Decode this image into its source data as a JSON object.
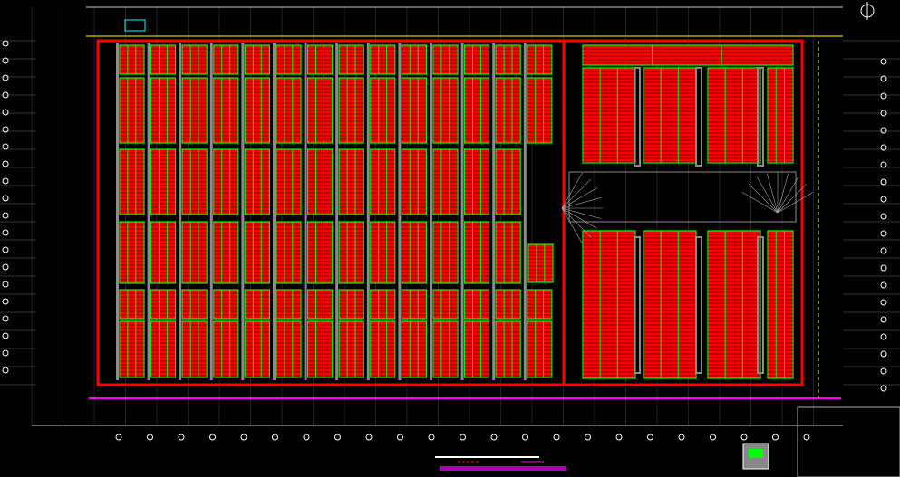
{
  "drawing": {
    "colors": {
      "background": "#000000",
      "rack_fill": "#ff0000",
      "rack_frame": "#00ff00",
      "wall": "#ff0000",
      "aisle": "#8c8c8c",
      "grid_line": "#ffffff",
      "boundary": "#ff00ff",
      "axis_line": "#ffff00"
    },
    "icons": [
      "north-arrow-icon",
      "axis-bubble-icon",
      "title-block-stamp"
    ]
  }
}
